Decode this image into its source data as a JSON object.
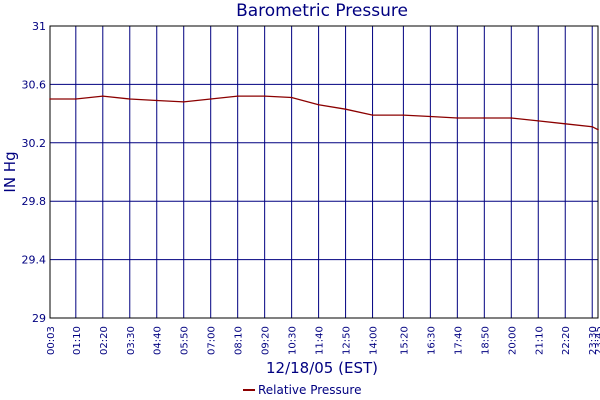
{
  "chart_data": {
    "type": "line",
    "title": "Barometric Pressure",
    "xlabel": "12/18/05 (EST)",
    "ylabel": "IN Hg",
    "ylim": [
      29,
      31
    ],
    "y_ticks": [
      "31",
      "30.6",
      "30.2",
      "29.8",
      "29.4",
      "29"
    ],
    "x_ticks": [
      "00:03",
      "01:10",
      "02:20",
      "03:30",
      "04:40",
      "05:50",
      "07:00",
      "08:10",
      "09:20",
      "10:30",
      "11:40",
      "12:50",
      "14:00",
      "15:20",
      "16:30",
      "17:40",
      "18:50",
      "20:00",
      "21:10",
      "22:20",
      "23:30",
      "23:45"
    ],
    "grid": true,
    "legend_position": "bottom-center",
    "colors": {
      "series": "#8b0000",
      "grid": "#000080",
      "text": "#000080"
    },
    "x": [
      "00:03",
      "01:10",
      "02:20",
      "03:30",
      "04:40",
      "05:50",
      "07:00",
      "08:10",
      "09:20",
      "10:30",
      "11:40",
      "12:50",
      "14:00",
      "15:20",
      "16:30",
      "17:40",
      "18:50",
      "20:00",
      "21:10",
      "22:20",
      "23:30",
      "23:45"
    ],
    "series": [
      {
        "name": "Relative Pressure",
        "values": [
          30.5,
          30.5,
          30.52,
          30.5,
          30.49,
          30.48,
          30.5,
          30.52,
          30.52,
          30.51,
          30.46,
          30.43,
          30.39,
          30.39,
          30.38,
          30.37,
          30.37,
          30.37,
          30.35,
          30.33,
          30.31,
          30.29
        ]
      }
    ]
  }
}
